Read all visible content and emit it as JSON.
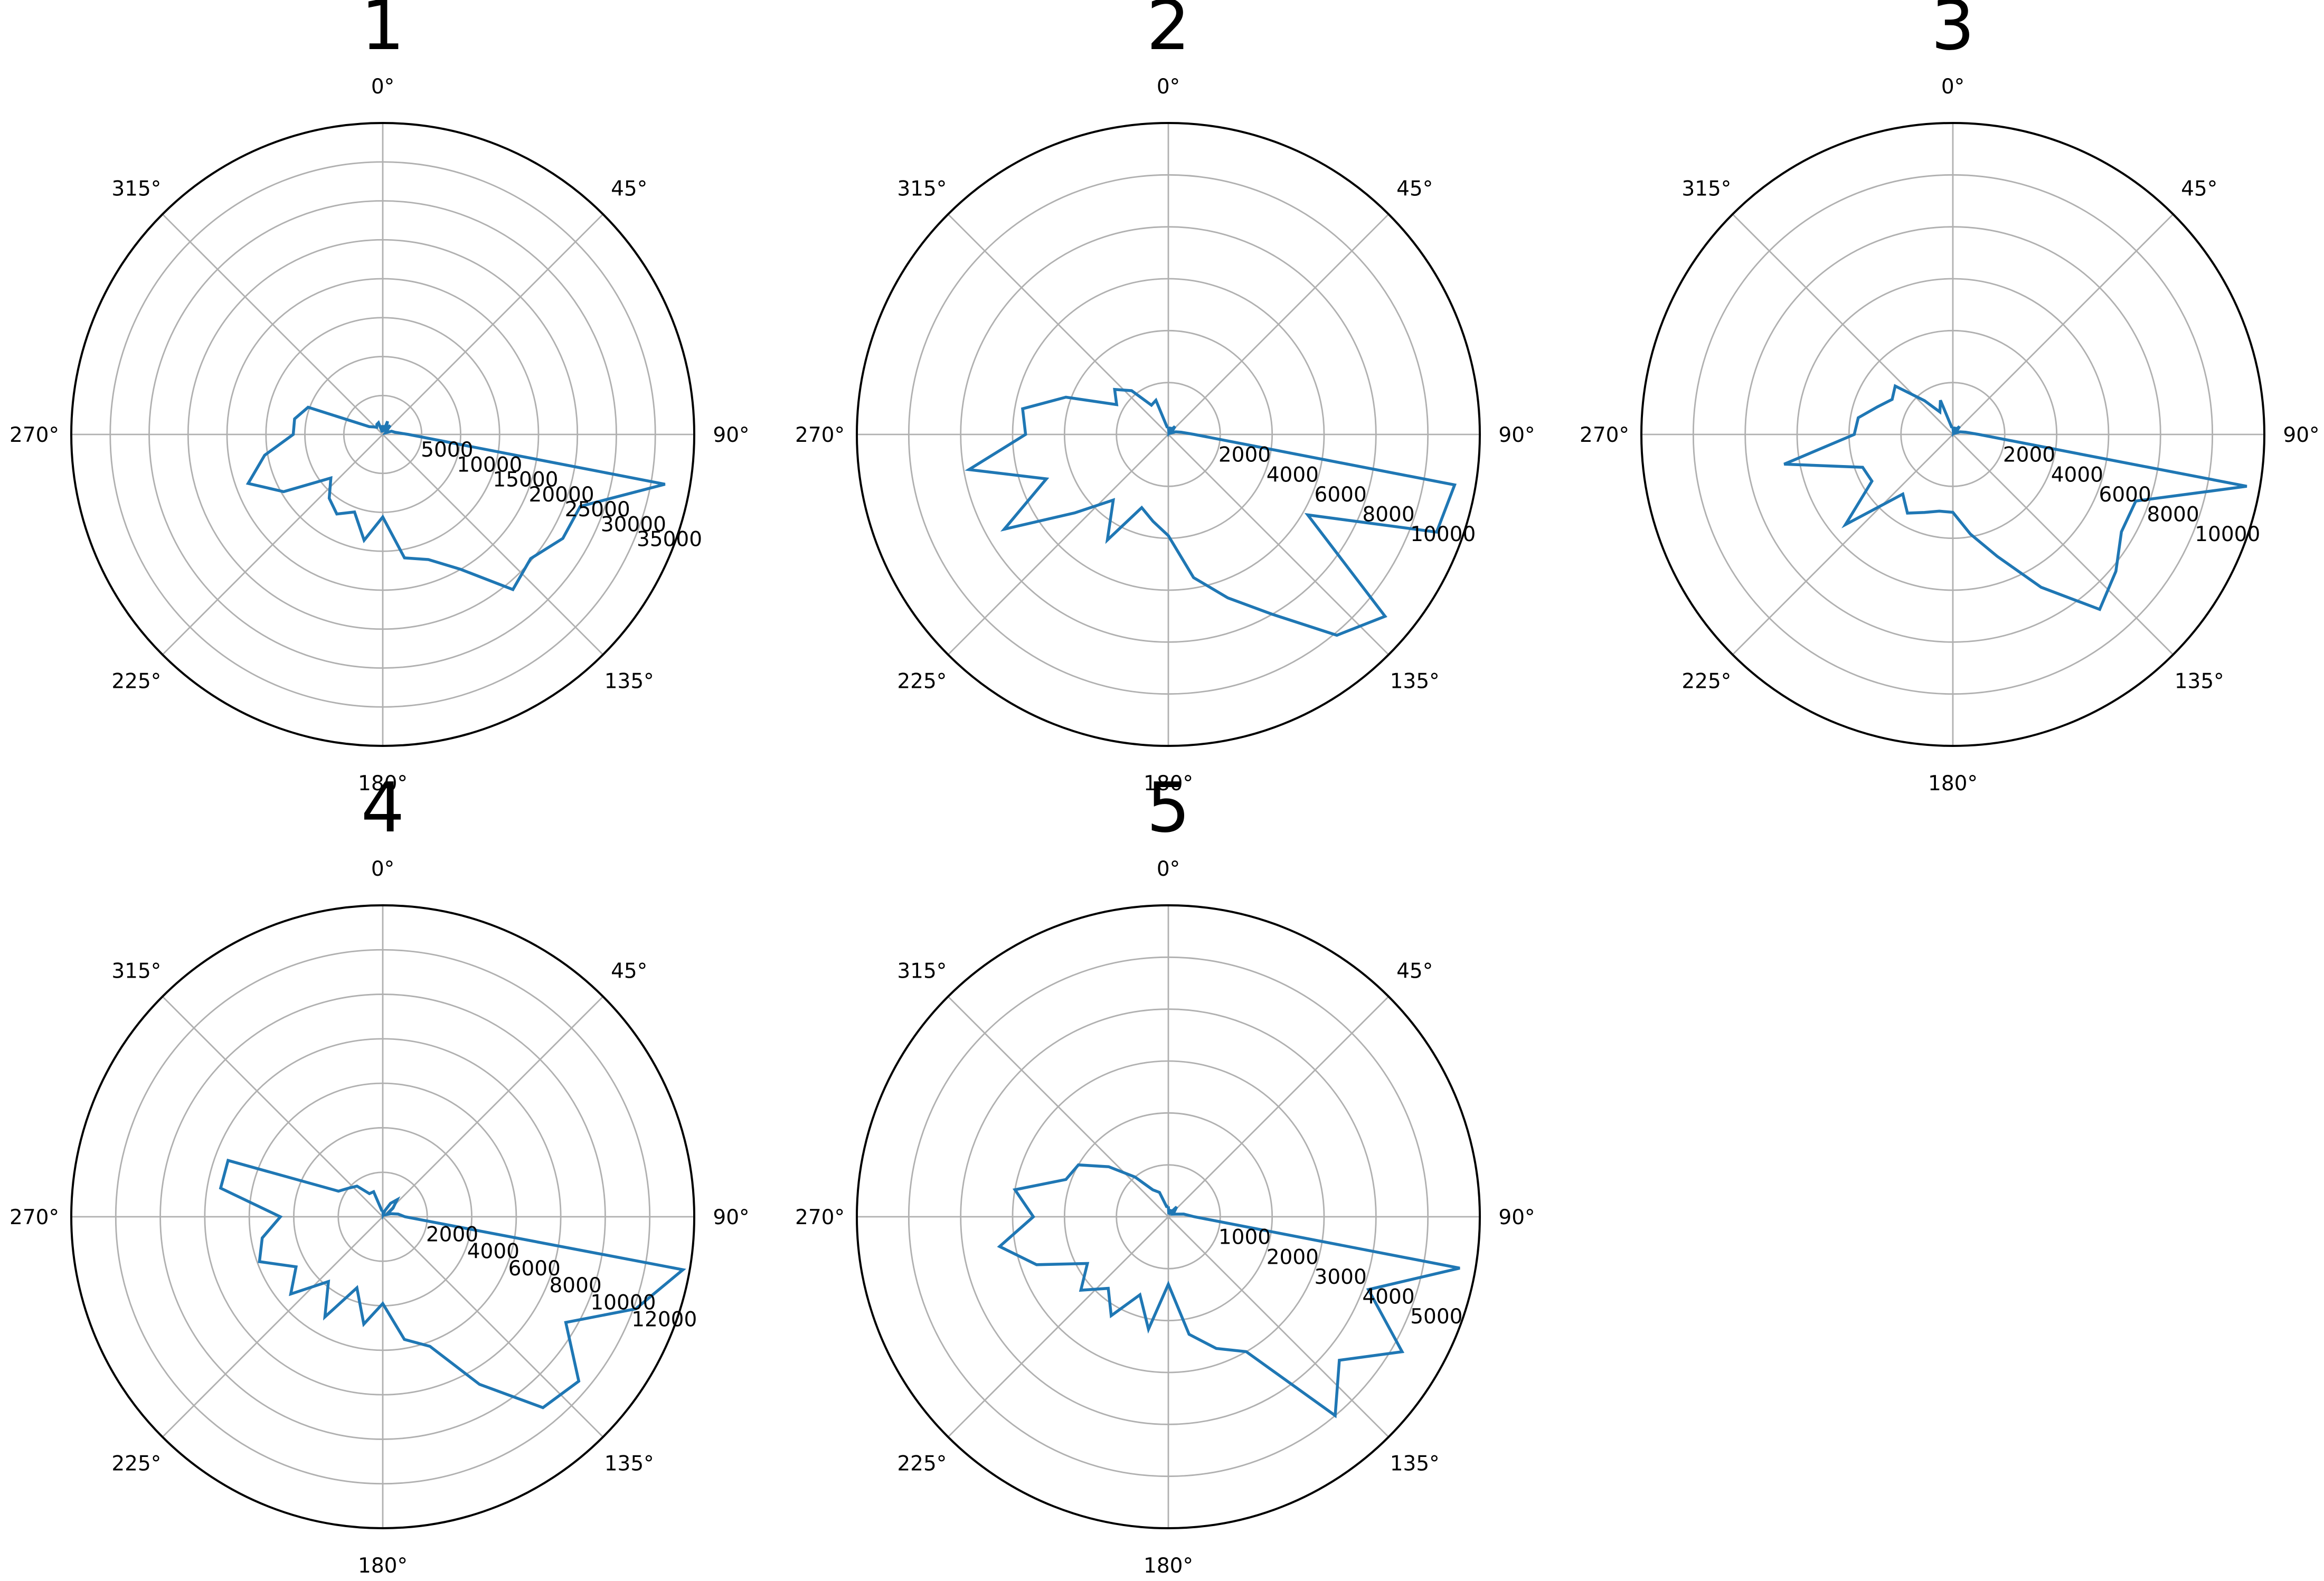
{
  "colors": {
    "series": "#1f77b4",
    "grid": "#b0b0b0",
    "frame": "#000000",
    "background": "#ffffff"
  },
  "chart_data": [
    {
      "type": "polar-line",
      "title": "1",
      "theta_labels": [
        "0°",
        "45°",
        "90°",
        "135°",
        "180°",
        "225°",
        "270°",
        "315°"
      ],
      "r_ticks": [
        5000,
        10000,
        15000,
        20000,
        25000,
        30000,
        35000
      ],
      "r_tick_labels": [
        "5000",
        "10000",
        "15000",
        "20000",
        "25000",
        "30000",
        "35000"
      ],
      "r_max": 40000,
      "grid": true,
      "series": [
        {
          "theta_deg": [
            0,
            10,
            20,
            30,
            40,
            50,
            60,
            70,
            80,
            90,
            100,
            110,
            120,
            130,
            140,
            150,
            160,
            170,
            180,
            190,
            200,
            210,
            220,
            230,
            240,
            250,
            260,
            270,
            280,
            290,
            300,
            310,
            320,
            330,
            340,
            350
          ],
          "r": [
            1200,
            400,
            1800,
            900,
            1500,
            600,
            400,
            1200,
            1600,
            3300,
            36800,
            27000,
            26700,
            24800,
            26000,
            20000,
            17100,
            16100,
            10600,
            13800,
            10600,
            11800,
            10700,
            8700,
            14700,
            18400,
            15400,
            11500,
            11500,
            10200,
            2000,
            1500,
            1200,
            1500,
            1600,
            300
          ]
        }
      ]
    },
    {
      "type": "polar-line",
      "title": "2",
      "theta_labels": [
        "0°",
        "45°",
        "90°",
        "135°",
        "180°",
        "225°",
        "270°",
        "315°"
      ],
      "r_ticks": [
        2000,
        4000,
        6000,
        8000,
        10000
      ],
      "r_tick_labels": [
        "2000",
        "4000",
        "6000",
        "8000",
        "10000"
      ],
      "r_max": 12000,
      "grid": true,
      "series": [
        {
          "theta_deg": [
            0,
            10,
            20,
            30,
            40,
            50,
            60,
            70,
            80,
            90,
            100,
            110,
            120,
            130,
            140,
            150,
            160,
            170,
            180,
            190,
            200,
            210,
            220,
            230,
            240,
            250,
            260,
            270,
            280,
            290,
            300,
            310,
            320,
            330,
            340,
            350
          ],
          "r": [
            300,
            100,
            300,
            200,
            400,
            200,
            100,
            300,
            500,
            1000,
            11200,
            11000,
            6200,
            10900,
            10100,
            8000,
            6700,
            5600,
            3900,
            3400,
            3000,
            4700,
            3300,
            4700,
            7300,
            5000,
            7800,
            5500,
            5700,
            4200,
            2300,
            2700,
            2200,
            1300,
            1400,
            300
          ]
        }
      ]
    },
    {
      "type": "polar-line",
      "title": "3",
      "theta_labels": [
        "0°",
        "45°",
        "90°",
        "135°",
        "180°",
        "225°",
        "270°",
        "315°"
      ],
      "r_ticks": [
        2000,
        4000,
        6000,
        8000,
        10000
      ],
      "r_tick_labels": [
        "2000",
        "4000",
        "6000",
        "8000",
        "10000"
      ],
      "r_max": 12000,
      "grid": true,
      "series": [
        {
          "theta_deg": [
            0,
            10,
            20,
            30,
            40,
            50,
            60,
            70,
            80,
            90,
            100,
            110,
            120,
            130,
            140,
            150,
            160,
            170,
            180,
            190,
            200,
            210,
            220,
            230,
            240,
            250,
            260,
            270,
            280,
            290,
            300,
            310,
            320,
            330,
            340,
            350
          ],
          "r": [
            300,
            100,
            300,
            200,
            400,
            200,
            100,
            300,
            500,
            1000,
            11500,
            7500,
            7500,
            8200,
            8800,
            6800,
            5000,
            3900,
            3000,
            3000,
            3200,
            3500,
            3000,
            5400,
            3600,
            3700,
            6600,
            3800,
            3700,
            3100,
            2700,
            2900,
            1700,
            1000,
            1400,
            300
          ]
        }
      ]
    },
    {
      "type": "polar-line",
      "title": "4",
      "theta_labels": [
        "0°",
        "45°",
        "90°",
        "135°",
        "180°",
        "225°",
        "270°",
        "315°"
      ],
      "r_ticks": [
        2000,
        4000,
        6000,
        8000,
        10000,
        12000
      ],
      "r_tick_labels": [
        "2000",
        "4000",
        "6000",
        "8000",
        "10000",
        "12000"
      ],
      "r_max": 14000,
      "grid": true,
      "series": [
        {
          "theta_deg": [
            0,
            10,
            20,
            30,
            40,
            50,
            60,
            70,
            80,
            90,
            100,
            110,
            120,
            130,
            140,
            150,
            160,
            170,
            180,
            190,
            200,
            210,
            220,
            230,
            240,
            250,
            260,
            270,
            280,
            290,
            300,
            310,
            320,
            330,
            340,
            350
          ],
          "r": [
            300,
            100,
            300,
            700,
            1000,
            600,
            200,
            400,
            700,
            1000,
            13700,
            12100,
            9500,
            11500,
            11200,
            8700,
            6200,
            5600,
            3900,
            4900,
            3400,
            5200,
            3800,
            5400,
            4500,
            5900,
            5500,
            4600,
            7400,
            7400,
            2300,
            2000,
            1800,
            1200,
            1200,
            300
          ]
        }
      ]
    },
    {
      "type": "polar-line",
      "title": "5",
      "theta_labels": [
        "0°",
        "45°",
        "90°",
        "135°",
        "180°",
        "225°",
        "270°",
        "315°"
      ],
      "r_ticks": [
        1000,
        2000,
        3000,
        4000,
        5000
      ],
      "r_tick_labels": [
        "1000",
        "2000",
        "3000",
        "4000",
        "5000"
      ],
      "r_max": 6000,
      "grid": true,
      "series": [
        {
          "theta_deg": [
            0,
            10,
            20,
            30,
            40,
            50,
            60,
            70,
            80,
            90,
            100,
            110,
            120,
            130,
            140,
            150,
            160,
            170,
            180,
            190,
            200,
            210,
            220,
            230,
            240,
            250,
            260,
            270,
            280,
            290,
            300,
            310,
            320,
            330,
            340,
            350
          ],
          "r": [
            200,
            50,
            150,
            100,
            250,
            150,
            100,
            150,
            300,
            500,
            5700,
            4100,
            5200,
            4300,
            5000,
            3000,
            2700,
            2300,
            1300,
            2200,
            1600,
            2200,
            1800,
            2200,
            1800,
            2700,
            3300,
            2600,
            3000,
            2100,
            2000,
            1500,
            1000,
            600,
            500,
            200
          ]
        }
      ]
    }
  ]
}
